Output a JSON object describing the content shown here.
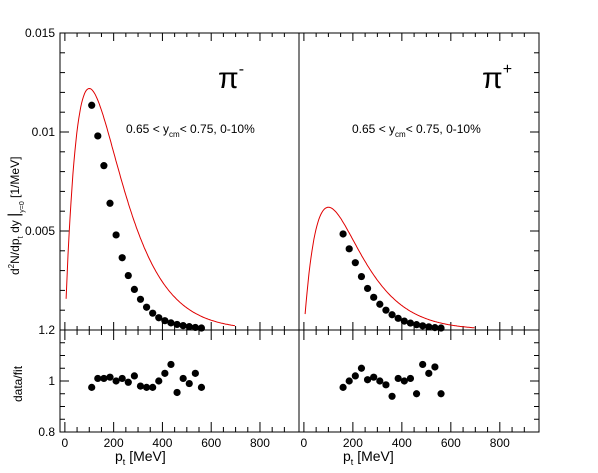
{
  "chart_data": {
    "type": "scatter",
    "layout": "2x2 panels: spectra on top, data/fit ratios below",
    "panels": [
      {
        "label_base": "π",
        "label_sup": "-",
        "selection": {
          "pre": "0.65 < y",
          "sub": "cm",
          "post": "< 0.75, 0-10%"
        },
        "fit_peak": {
          "x": 100,
          "y": 0.0122
        },
        "points": [
          [
            110,
            0.01135
          ],
          [
            135,
            0.0098
          ],
          [
            160,
            0.0083
          ],
          [
            185,
            0.0064
          ],
          [
            210,
            0.0048
          ],
          [
            235,
            0.00365
          ],
          [
            260,
            0.00275
          ],
          [
            285,
            0.00205
          ],
          [
            310,
            0.00155
          ],
          [
            335,
            0.00115
          ],
          [
            360,
            0.00085
          ],
          [
            385,
            0.00062
          ],
          [
            410,
            0.00047
          ],
          [
            435,
            0.00036
          ],
          [
            460,
            0.00028
          ],
          [
            485,
            0.00022
          ],
          [
            510,
            0.00017
          ],
          [
            535,
            0.00013
          ],
          [
            560,
            0.0001
          ]
        ],
        "ratio": [
          [
            110,
            0.975
          ],
          [
            135,
            1.01
          ],
          [
            160,
            1.01
          ],
          [
            185,
            1.015
          ],
          [
            210,
            1.0
          ],
          [
            235,
            1.01
          ],
          [
            260,
            0.995
          ],
          [
            285,
            1.02
          ],
          [
            310,
            0.98
          ],
          [
            335,
            0.975
          ],
          [
            360,
            0.975
          ],
          [
            385,
            1.0
          ],
          [
            410,
            1.03
          ],
          [
            435,
            1.065
          ],
          [
            460,
            0.955
          ],
          [
            485,
            1.01
          ],
          [
            510,
            0.99
          ],
          [
            535,
            1.03
          ],
          [
            560,
            0.975
          ]
        ]
      },
      {
        "label_base": "π",
        "label_sup": "+",
        "selection": {
          "pre": "0.65 < y",
          "sub": "cm",
          "post": "< 0.75, 0-10%"
        },
        "fit_peak": {
          "x": 100,
          "y": 0.0062
        },
        "points": [
          [
            160,
            0.00485
          ],
          [
            185,
            0.0041
          ],
          [
            210,
            0.0034
          ],
          [
            235,
            0.0027
          ],
          [
            260,
            0.0021
          ],
          [
            285,
            0.00165
          ],
          [
            310,
            0.0013
          ],
          [
            335,
            0.001
          ],
          [
            360,
            0.00077
          ],
          [
            385,
            0.00059
          ],
          [
            410,
            0.00045
          ],
          [
            435,
            0.00035
          ],
          [
            460,
            0.00027
          ],
          [
            485,
            0.00021
          ],
          [
            510,
            0.00016
          ],
          [
            535,
            0.00012
          ],
          [
            560,
            0.0001
          ]
        ],
        "ratio": [
          [
            160,
            0.975
          ],
          [
            185,
            1.0
          ],
          [
            210,
            1.02
          ],
          [
            235,
            1.05
          ],
          [
            260,
            1.005
          ],
          [
            285,
            1.015
          ],
          [
            310,
            1.0
          ],
          [
            335,
            0.985
          ],
          [
            360,
            0.94
          ],
          [
            385,
            1.01
          ],
          [
            410,
            1.0
          ],
          [
            435,
            1.01
          ],
          [
            460,
            0.95
          ],
          [
            485,
            1.065
          ],
          [
            510,
            1.03
          ],
          [
            535,
            1.055
          ],
          [
            560,
            0.95
          ]
        ]
      }
    ],
    "top_yaxis": {
      "ylim": [
        0,
        0.015
      ],
      "ticks": [
        0.005,
        0.01,
        0.015
      ],
      "tick_labels": [
        "0.005",
        "0.01",
        "0.015"
      ],
      "label": "d²N/dp_t dy |_{y=0} [1/MeV]"
    },
    "ratio_yaxis": {
      "ylim": [
        0.8,
        1.2
      ],
      "ticks": [
        0.8,
        1,
        1.2
      ],
      "tick_labels": [
        "0.8",
        "1",
        "1.2"
      ],
      "label": "data/fit"
    },
    "xaxis": {
      "xlim": [
        -20,
        960
      ],
      "ticks": [
        0,
        200,
        400,
        600,
        800
      ],
      "tick_labels": [
        "0",
        "200",
        "400",
        "600",
        "800"
      ],
      "label_main": "p",
      "label_sub": "t",
      "label_unit": "[MeV]"
    },
    "colors": {
      "fit": "#e00000",
      "points": "#000000",
      "axes": "#000000"
    }
  }
}
